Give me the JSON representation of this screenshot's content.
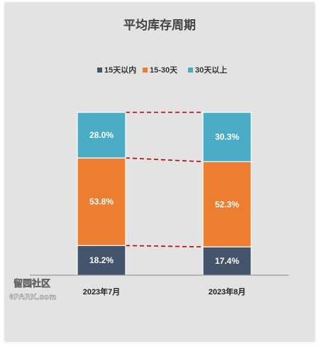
{
  "chart_data": {
    "type": "bar",
    "stacked": true,
    "normalized_percent": true,
    "title": "平均库存周期",
    "categories": [
      "2023年7月",
      "2023年8月"
    ],
    "series": [
      {
        "name": "15天以内",
        "color": "#44546a",
        "values": [
          18.2,
          17.4
        ],
        "labels": [
          "18.2%",
          "17.4%"
        ]
      },
      {
        "name": "15-30天",
        "color": "#ed7d31",
        "values": [
          53.8,
          52.3
        ],
        "labels": [
          "53.8%",
          "52.3%"
        ]
      },
      {
        "name": "30天以上",
        "color": "#4bacc6",
        "values": [
          28.0,
          30.3
        ],
        "labels": [
          "28.0%",
          "30.3%"
        ]
      }
    ],
    "ylim": [
      0,
      100
    ],
    "legend_position": "top",
    "connector_lines": {
      "style": "dashed",
      "color": "#c00000"
    }
  },
  "watermark": {
    "text": "留园社区",
    "subtext": "6PARK.com"
  }
}
